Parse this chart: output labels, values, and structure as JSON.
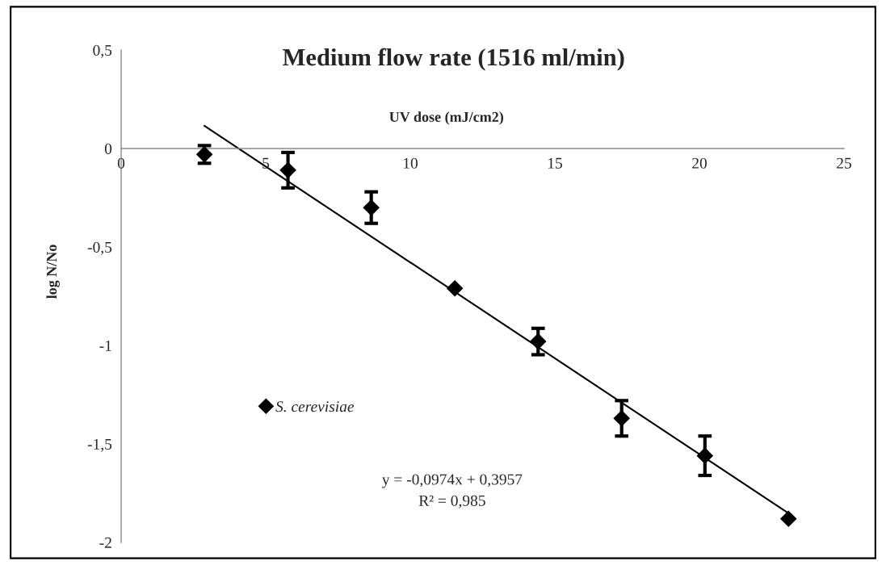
{
  "chart_data": {
    "type": "scatter",
    "title": "Medium flow rate (1516 ml/min)",
    "xlabel": "UV dose (mJ/cm2)",
    "ylabel": "log N/No",
    "xlim": [
      0,
      25
    ],
    "ylim": [
      -2,
      0.5
    ],
    "xticks": [
      0,
      5,
      10,
      15,
      20,
      25
    ],
    "yticks": [
      {
        "value": -2,
        "label": "-2"
      },
      {
        "value": -1.5,
        "label": "-1,5"
      },
      {
        "value": -1,
        "label": "-1"
      },
      {
        "value": -0.5,
        "label": "-0,5"
      },
      {
        "value": 0,
        "label": "0"
      },
      {
        "value": 0.5,
        "label": "0,5"
      }
    ],
    "legend": "bottom left",
    "series": [
      {
        "name": "S. cerevisiae",
        "marker": "diamond",
        "color": "#000000",
        "x": [
          2.88,
          5.77,
          8.65,
          11.54,
          14.42,
          17.31,
          20.19,
          23.08
        ],
        "values": [
          -0.03,
          -0.11,
          -0.3,
          -0.71,
          -0.98,
          -1.37,
          -1.56,
          -1.88
        ],
        "errors": [
          0.045,
          0.09,
          0.08,
          null,
          0.067,
          0.09,
          0.1,
          null
        ]
      },
      {
        "type": "line",
        "color": "#000000",
        "x": [
          2.88,
          23.08
        ],
        "values": [
          0.115,
          -1.852
        ]
      }
    ],
    "annotations": [
      "y = -0,0974x + 0,3957",
      "R² = 0,985"
    ]
  }
}
